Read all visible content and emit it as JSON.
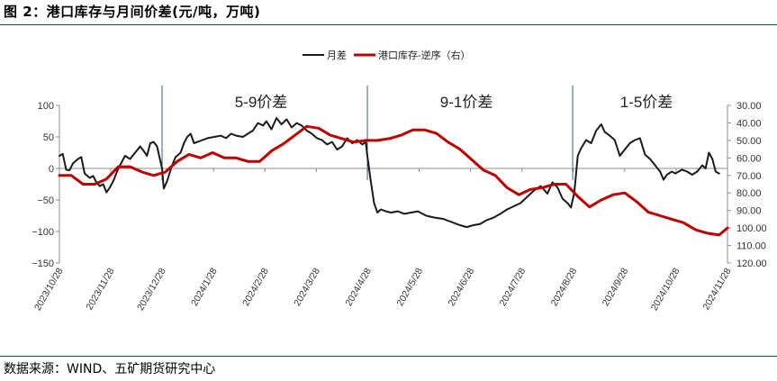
{
  "header": {
    "title": "图 2：港口库存与月间价差(元/吨，万吨)"
  },
  "footer": {
    "source": "数据来源：WIND、五矿期货研究中心"
  },
  "chart_data": {
    "type": "line",
    "title": "",
    "legend": {
      "position": "top-right",
      "entries": [
        "月差",
        "港口库存-逆序（右）"
      ]
    },
    "grid": false,
    "x_tick_labels": [
      "2023/10/28",
      "2023/11/28",
      "2023/12/28",
      "2024/1/28",
      "2024/2/28",
      "2024/3/28",
      "2024/4/28",
      "2024/5/28",
      "2024/6/28",
      "2024/7/28",
      "2024/8/28",
      "2024/9/28",
      "2024/10/28",
      "2024/11/28"
    ],
    "x_range": [
      "2023-10-28",
      "2024-11-28"
    ],
    "y_left": {
      "ylim": [
        -150,
        100
      ],
      "ticks": [
        "100",
        "50",
        "0",
        "−50",
        "−100",
        "−150"
      ]
    },
    "y_right": {
      "ylim": [
        120,
        30
      ],
      "inverted": true,
      "ticks": [
        "30.00",
        "40.00",
        "50.00",
        "60.00",
        "70.00",
        "80.00",
        "90.00",
        "100.00",
        "110.00",
        "120.00"
      ]
    },
    "periods": [
      {
        "label": "5-9价差",
        "divider": "2023-12-28"
      },
      {
        "label": "9-1价差",
        "divider": "2024-04-28"
      },
      {
        "label": "1-5价差",
        "divider": "2024-08-28"
      }
    ],
    "series": [
      {
        "name": "月差",
        "axis": "left",
        "color": "#1a1a1a",
        "points": [
          [
            "2023-10-28",
            20
          ],
          [
            "2023-10-30",
            23
          ],
          [
            "2023-11-01",
            -2
          ],
          [
            "2023-11-03",
            -3
          ],
          [
            "2023-11-05",
            8
          ],
          [
            "2023-11-08",
            15
          ],
          [
            "2023-11-10",
            18
          ],
          [
            "2023-11-12",
            -8
          ],
          [
            "2023-11-15",
            -15
          ],
          [
            "2023-11-17",
            -12
          ],
          [
            "2023-11-19",
            -22
          ],
          [
            "2023-11-21",
            -28
          ],
          [
            "2023-11-23",
            -25
          ],
          [
            "2023-11-25",
            -38
          ],
          [
            "2023-11-27",
            -30
          ],
          [
            "2023-11-29",
            -20
          ],
          [
            "2023-12-02",
            0
          ],
          [
            "2023-12-04",
            10
          ],
          [
            "2023-12-06",
            20
          ],
          [
            "2023-12-09",
            15
          ],
          [
            "2023-12-12",
            25
          ],
          [
            "2023-12-15",
            35
          ],
          [
            "2023-12-17",
            28
          ],
          [
            "2023-12-19",
            20
          ],
          [
            "2023-12-21",
            40
          ],
          [
            "2023-12-23",
            42
          ],
          [
            "2023-12-25",
            35
          ],
          [
            "2023-12-28",
            0
          ],
          [
            "2023-12-29",
            -32
          ],
          [
            "2023-12-31",
            -20
          ],
          [
            "2024-01-03",
            5
          ],
          [
            "2024-01-05",
            18
          ],
          [
            "2024-01-08",
            25
          ],
          [
            "2024-01-10",
            40
          ],
          [
            "2024-01-12",
            50
          ],
          [
            "2024-01-14",
            55
          ],
          [
            "2024-01-16",
            40
          ],
          [
            "2024-01-18",
            42
          ],
          [
            "2024-01-21",
            45
          ],
          [
            "2024-01-24",
            48
          ],
          [
            "2024-01-28",
            50
          ],
          [
            "2024-02-01",
            52
          ],
          [
            "2024-02-04",
            48
          ],
          [
            "2024-02-07",
            55
          ],
          [
            "2024-02-10",
            52
          ],
          [
            "2024-02-14",
            50
          ],
          [
            "2024-02-17",
            55
          ],
          [
            "2024-02-20",
            60
          ],
          [
            "2024-02-23",
            72
          ],
          [
            "2024-02-26",
            68
          ],
          [
            "2024-02-28",
            75
          ],
          [
            "2024-03-02",
            62
          ],
          [
            "2024-03-05",
            80
          ],
          [
            "2024-03-08",
            70
          ],
          [
            "2024-03-11",
            78
          ],
          [
            "2024-03-14",
            65
          ],
          [
            "2024-03-17",
            72
          ],
          [
            "2024-03-20",
            68
          ],
          [
            "2024-03-23",
            60
          ],
          [
            "2024-03-26",
            55
          ],
          [
            "2024-03-29",
            48
          ],
          [
            "2024-04-01",
            45
          ],
          [
            "2024-04-04",
            38
          ],
          [
            "2024-04-07",
            42
          ],
          [
            "2024-04-10",
            30
          ],
          [
            "2024-04-13",
            35
          ],
          [
            "2024-04-16",
            48
          ],
          [
            "2024-04-19",
            40
          ],
          [
            "2024-04-22",
            45
          ],
          [
            "2024-04-25",
            38
          ],
          [
            "2024-04-27",
            42
          ],
          [
            "2024-04-28",
            20
          ],
          [
            "2024-04-30",
            -20
          ],
          [
            "2024-05-02",
            -55
          ],
          [
            "2024-05-04",
            -70
          ],
          [
            "2024-05-06",
            -65
          ],
          [
            "2024-05-09",
            -68
          ],
          [
            "2024-05-12",
            -70
          ],
          [
            "2024-05-16",
            -68
          ],
          [
            "2024-05-20",
            -72
          ],
          [
            "2024-05-24",
            -70
          ],
          [
            "2024-05-28",
            -68
          ],
          [
            "2024-06-02",
            -75
          ],
          [
            "2024-06-07",
            -78
          ],
          [
            "2024-06-12",
            -80
          ],
          [
            "2024-06-17",
            -85
          ],
          [
            "2024-06-22",
            -90
          ],
          [
            "2024-06-26",
            -93
          ],
          [
            "2024-06-30",
            -90
          ],
          [
            "2024-07-04",
            -88
          ],
          [
            "2024-07-08",
            -82
          ],
          [
            "2024-07-12",
            -78
          ],
          [
            "2024-07-16",
            -72
          ],
          [
            "2024-07-20",
            -65
          ],
          [
            "2024-07-24",
            -60
          ],
          [
            "2024-07-28",
            -55
          ],
          [
            "2024-08-01",
            -45
          ],
          [
            "2024-08-05",
            -35
          ],
          [
            "2024-08-09",
            -28
          ],
          [
            "2024-08-13",
            -40
          ],
          [
            "2024-08-16",
            -22
          ],
          [
            "2024-08-19",
            -30
          ],
          [
            "2024-08-22",
            -48
          ],
          [
            "2024-08-25",
            -55
          ],
          [
            "2024-08-27",
            -62
          ],
          [
            "2024-08-29",
            -38
          ],
          [
            "2024-08-31",
            20
          ],
          [
            "2024-09-02",
            32
          ],
          [
            "2024-09-05",
            45
          ],
          [
            "2024-09-08",
            40
          ],
          [
            "2024-09-11",
            60
          ],
          [
            "2024-09-14",
            70
          ],
          [
            "2024-09-16",
            58
          ],
          [
            "2024-09-19",
            52
          ],
          [
            "2024-09-22",
            45
          ],
          [
            "2024-09-25",
            20
          ],
          [
            "2024-09-28",
            30
          ],
          [
            "2024-10-01",
            40
          ],
          [
            "2024-10-04",
            45
          ],
          [
            "2024-10-07",
            48
          ],
          [
            "2024-10-10",
            22
          ],
          [
            "2024-10-13",
            15
          ],
          [
            "2024-10-16",
            5
          ],
          [
            "2024-10-19",
            -5
          ],
          [
            "2024-10-21",
            -18
          ],
          [
            "2024-10-23",
            -10
          ],
          [
            "2024-10-26",
            -5
          ],
          [
            "2024-10-28",
            -8
          ],
          [
            "2024-11-01",
            -2
          ],
          [
            "2024-11-04",
            -5
          ],
          [
            "2024-11-07",
            -10
          ],
          [
            "2024-11-10",
            -5
          ],
          [
            "2024-11-13",
            5
          ],
          [
            "2024-11-15",
            0
          ],
          [
            "2024-11-17",
            25
          ],
          [
            "2024-11-19",
            15
          ],
          [
            "2024-11-21",
            -5
          ],
          [
            "2024-11-23",
            -8
          ]
        ]
      },
      {
        "name": "港口库存-逆序（右）",
        "axis": "right",
        "color": "#c00000",
        "points": [
          [
            "2023-10-28",
            70
          ],
          [
            "2023-11-04",
            70
          ],
          [
            "2023-11-11",
            75
          ],
          [
            "2023-11-18",
            75
          ],
          [
            "2023-11-25",
            72
          ],
          [
            "2023-12-02",
            65
          ],
          [
            "2023-12-09",
            65
          ],
          [
            "2023-12-16",
            68
          ],
          [
            "2023-12-23",
            70
          ],
          [
            "2023-12-30",
            68
          ],
          [
            "2024-01-06",
            62
          ],
          [
            "2024-01-13",
            58
          ],
          [
            "2024-01-20",
            60
          ],
          [
            "2024-01-27",
            57
          ],
          [
            "2024-02-03",
            60
          ],
          [
            "2024-02-10",
            60
          ],
          [
            "2024-02-17",
            62
          ],
          [
            "2024-02-24",
            62
          ],
          [
            "2024-03-02",
            56
          ],
          [
            "2024-03-09",
            52
          ],
          [
            "2024-03-16",
            47
          ],
          [
            "2024-03-23",
            42
          ],
          [
            "2024-03-30",
            43
          ],
          [
            "2024-04-06",
            47
          ],
          [
            "2024-04-13",
            49
          ],
          [
            "2024-04-20",
            51
          ],
          [
            "2024-04-27",
            50
          ],
          [
            "2024-05-04",
            50
          ],
          [
            "2024-05-11",
            49
          ],
          [
            "2024-05-18",
            47
          ],
          [
            "2024-05-25",
            44
          ],
          [
            "2024-06-01",
            44
          ],
          [
            "2024-06-08",
            46
          ],
          [
            "2024-06-15",
            51
          ],
          [
            "2024-06-22",
            55
          ],
          [
            "2024-06-29",
            61
          ],
          [
            "2024-07-06",
            67
          ],
          [
            "2024-07-13",
            70
          ],
          [
            "2024-07-20",
            77
          ],
          [
            "2024-07-27",
            81
          ],
          [
            "2024-08-03",
            78
          ],
          [
            "2024-08-10",
            77
          ],
          [
            "2024-08-17",
            75
          ],
          [
            "2024-08-24",
            75
          ],
          [
            "2024-08-31",
            82
          ],
          [
            "2024-09-07",
            88
          ],
          [
            "2024-09-14",
            84
          ],
          [
            "2024-09-21",
            81
          ],
          [
            "2024-09-28",
            80
          ],
          [
            "2024-10-05",
            85
          ],
          [
            "2024-10-12",
            91
          ],
          [
            "2024-10-19",
            93
          ],
          [
            "2024-10-26",
            95
          ],
          [
            "2024-11-02",
            97
          ],
          [
            "2024-11-09",
            101
          ],
          [
            "2024-11-16",
            103
          ],
          [
            "2024-11-23",
            104
          ],
          [
            "2024-11-28",
            100
          ]
        ]
      }
    ]
  }
}
